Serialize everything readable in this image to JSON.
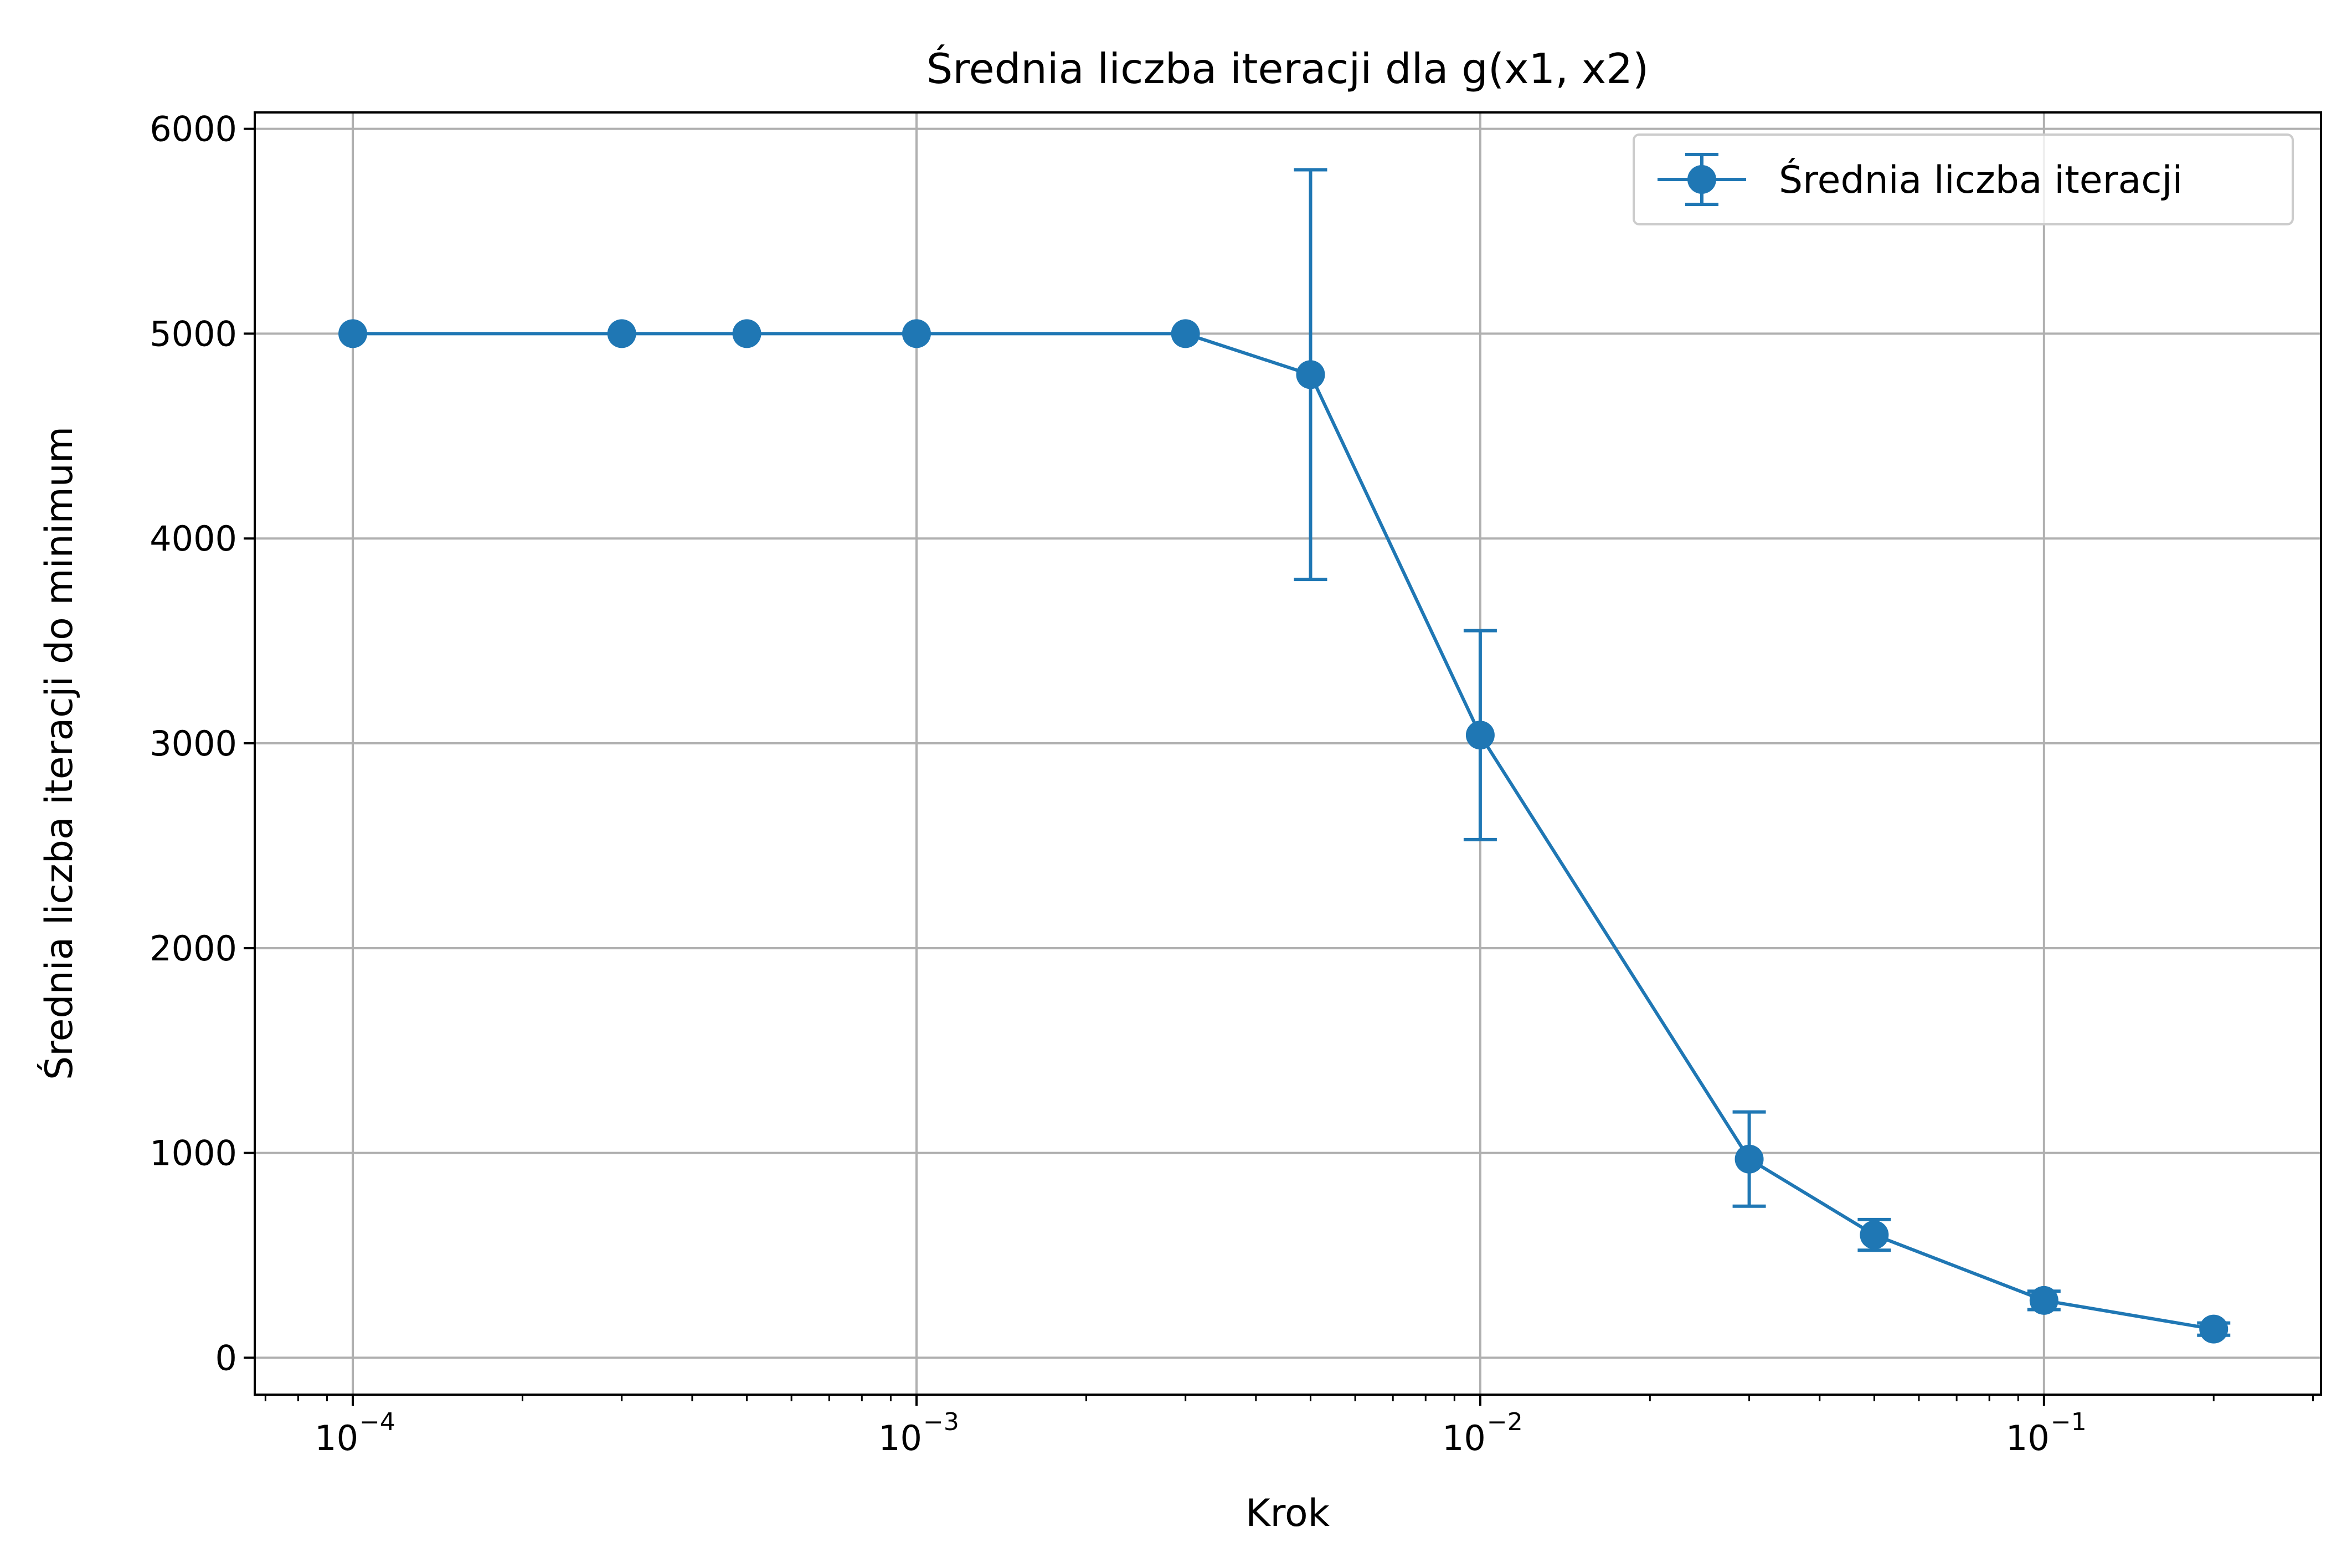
{
  "chart_data": {
    "type": "line",
    "title": "Średnia liczba iteracji dla g(x1, x2)",
    "xlabel": "Krok",
    "ylabel": "Średnia liczba iteracji do minimum",
    "x_scale": "log",
    "xlim": [
      6.7e-05,
      0.31
    ],
    "ylim": [
      -180,
      6080
    ],
    "x_ticks": [
      {
        "value": 0.0001,
        "base": "10",
        "exp": "−4"
      },
      {
        "value": 0.001,
        "base": "10",
        "exp": "−3"
      },
      {
        "value": 0.01,
        "base": "10",
        "exp": "−2"
      },
      {
        "value": 0.1,
        "base": "10",
        "exp": "−1"
      }
    ],
    "y_ticks": [
      0,
      1000,
      2000,
      3000,
      4000,
      5000,
      6000
    ],
    "grid": true,
    "legend_position": "top-right",
    "color": "#1f77b4",
    "series": [
      {
        "name": "Średnia liczba iteracji",
        "x": [
          0.0001,
          0.0003,
          0.0005,
          0.001,
          0.003,
          0.005,
          0.01,
          0.03,
          0.05,
          0.1,
          0.2
        ],
        "y": [
          5000,
          5000,
          5000,
          5000,
          5000,
          4800,
          3040,
          970,
          600,
          280,
          140
        ],
        "err": [
          0,
          0,
          0,
          0,
          0,
          1000,
          510,
          230,
          75,
          45,
          30
        ]
      }
    ]
  }
}
